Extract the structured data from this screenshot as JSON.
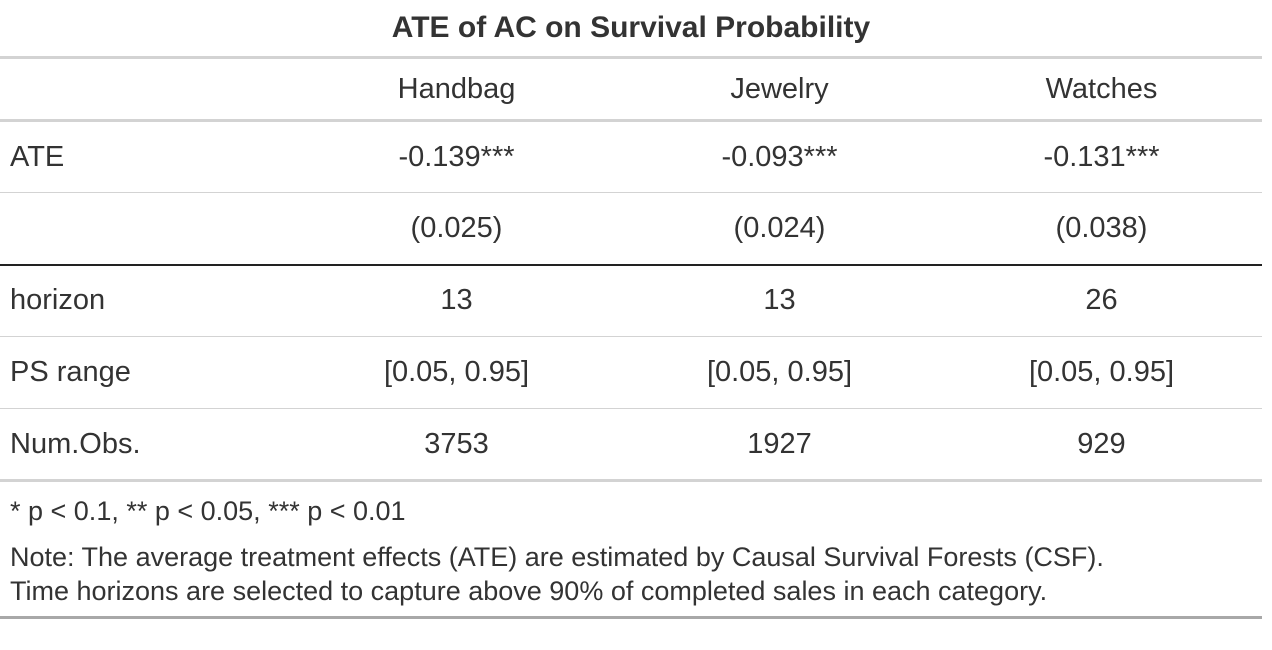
{
  "table": {
    "title": "ATE of AC on Survival Probability",
    "columns": [
      "",
      "Handbag",
      "Jewelry",
      "Watches"
    ],
    "rows": [
      {
        "label": "ATE",
        "values": [
          "-0.139***",
          "-0.093***",
          "-0.131***"
        ]
      },
      {
        "label": "",
        "values": [
          "(0.025)",
          "(0.024)",
          "(0.038)"
        ]
      },
      {
        "label": "horizon",
        "values": [
          "13",
          "13",
          "26"
        ]
      },
      {
        "label": "PS range",
        "values": [
          "[0.05, 0.95]",
          "[0.05, 0.95]",
          "[0.05, 0.95]"
        ]
      },
      {
        "label": "Num.Obs.",
        "values": [
          "3753",
          "1927",
          "929"
        ]
      }
    ],
    "significance_note": "* p < 0.1, ** p < 0.05, *** p < 0.01",
    "note_lines": [
      "Note: The average treatment effects (ATE) are estimated by Causal Survival Forests (CSF).",
      "Time horizons are selected to capture above 90% of completed sales in each category."
    ]
  }
}
